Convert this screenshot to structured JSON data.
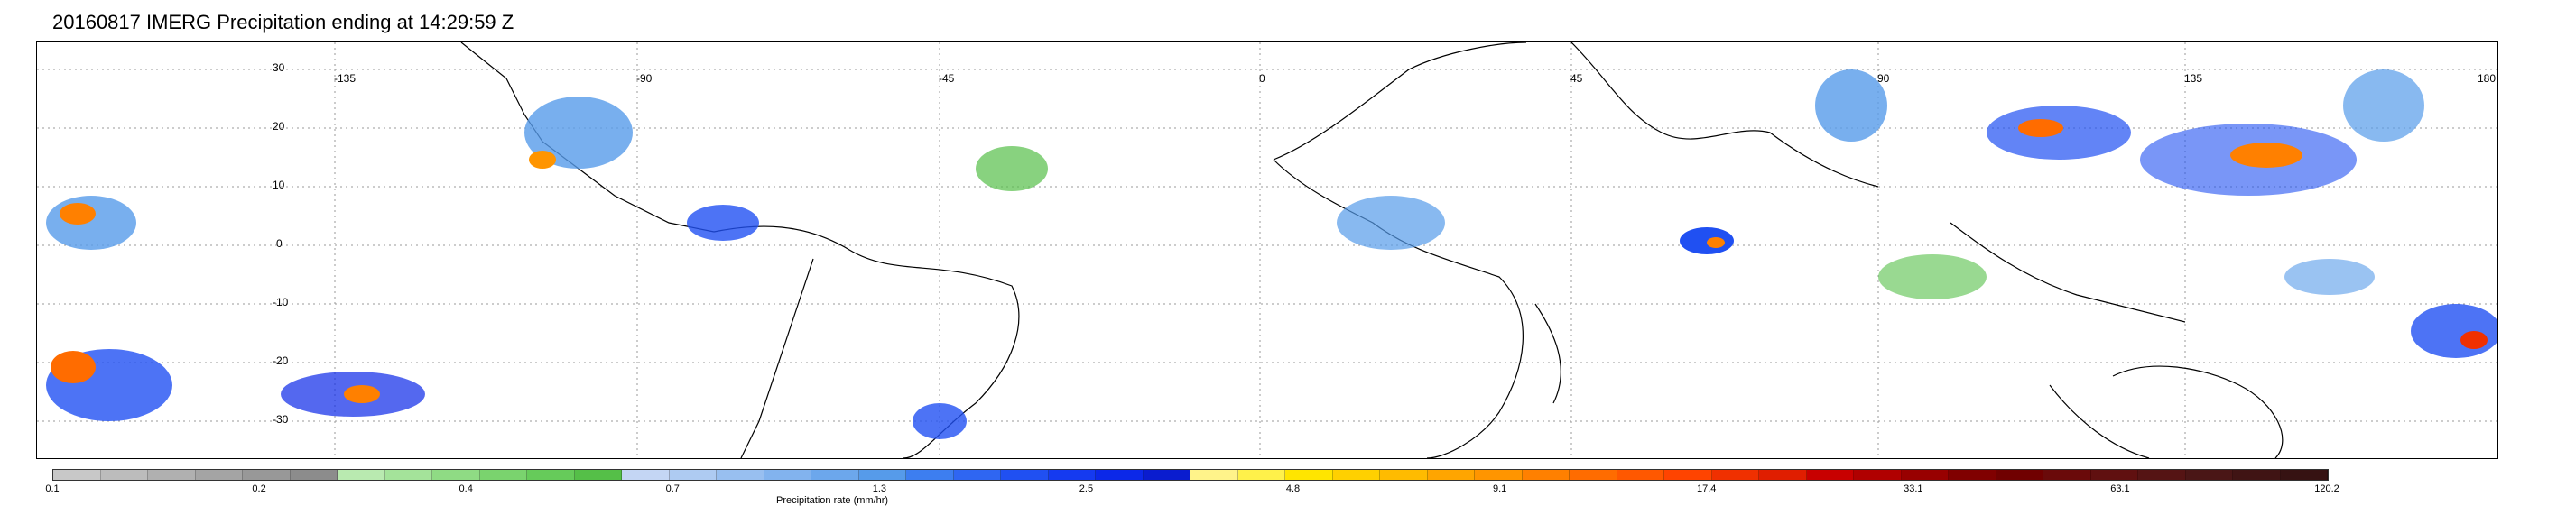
{
  "title": "20160817 IMERG Precipitation ending at 14:29:59 Z",
  "lat_labels": [
    "30",
    "20",
    "10",
    "0",
    "-10",
    "-20",
    "-30"
  ],
  "lon_labels": [
    "-135",
    "-90",
    "-45",
    "0",
    "45",
    "90",
    "135",
    "180"
  ],
  "colorbar": {
    "title": "Precipitation rate (mm/hr)",
    "tick_labels": [
      "0.1",
      "0.2",
      "0.4",
      "0.7",
      "1.3",
      "2.5",
      "4.8",
      "9.1",
      "17.4",
      "33.1",
      "63.1",
      "120.2"
    ],
    "colors": [
      "#c8c8c8",
      "#bcbcbc",
      "#b0b0b0",
      "#a4a4a4",
      "#989898",
      "#8c8c8c",
      "#b9eab0",
      "#a4e39a",
      "#8fdb84",
      "#7ad36e",
      "#66cb5a",
      "#55bf48",
      "#c4d6f4",
      "#aecbf2",
      "#98bff0",
      "#82b3ee",
      "#6ca7ec",
      "#569bea",
      "#3d7ef0",
      "#2f66f2",
      "#2050f2",
      "#153af0",
      "#0c28e8",
      "#0a1ccf",
      "#fff38a",
      "#fff14a",
      "#ffe500",
      "#ffd000",
      "#ffbb00",
      "#ffa500",
      "#ff9500",
      "#ff8000",
      "#ff6c00",
      "#ff5800",
      "#ff4400",
      "#f03000",
      "#e01e00",
      "#c80000",
      "#b00000",
      "#980000",
      "#800000",
      "#700000",
      "#6a0a0a",
      "#601010",
      "#551414",
      "#4a1616",
      "#401414",
      "#361212"
    ]
  }
}
